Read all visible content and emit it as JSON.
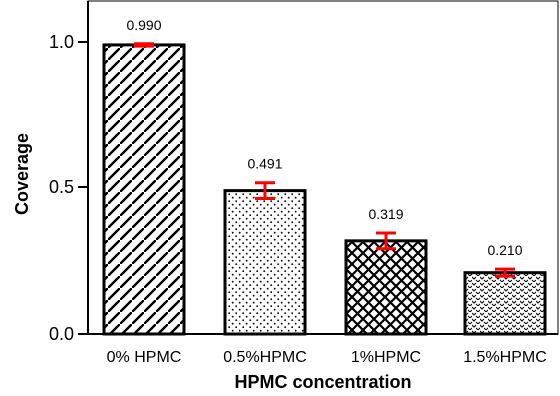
{
  "chart_data": {
    "type": "bar",
    "title": "",
    "xlabel": "HPMC concentration",
    "ylabel": "Coverage",
    "categories": [
      "0% HPMC",
      "0.5%HPMC",
      "1%HPMC",
      "1.5%HPMC"
    ],
    "values": [
      0.99,
      0.491,
      0.319,
      0.21
    ],
    "value_labels": [
      "0.990",
      "0.491",
      "0.319",
      "0.210"
    ],
    "errors": [
      0.004,
      0.027,
      0.027,
      0.012
    ],
    "ylim": [
      0.0,
      1.07
    ],
    "yticks": [
      0.0,
      0.5,
      1.0
    ],
    "ytick_labels": [
      "0.0",
      "0.5",
      "1.0"
    ],
    "patterns": [
      "diagonal-hatch",
      "fine-dots",
      "cross-hatch",
      "chevron-dots"
    ],
    "bar_fill": "#ffffff",
    "bar_stroke": "#000000",
    "error_bar_color": "#ff0000",
    "grid": false,
    "legend": "none"
  }
}
